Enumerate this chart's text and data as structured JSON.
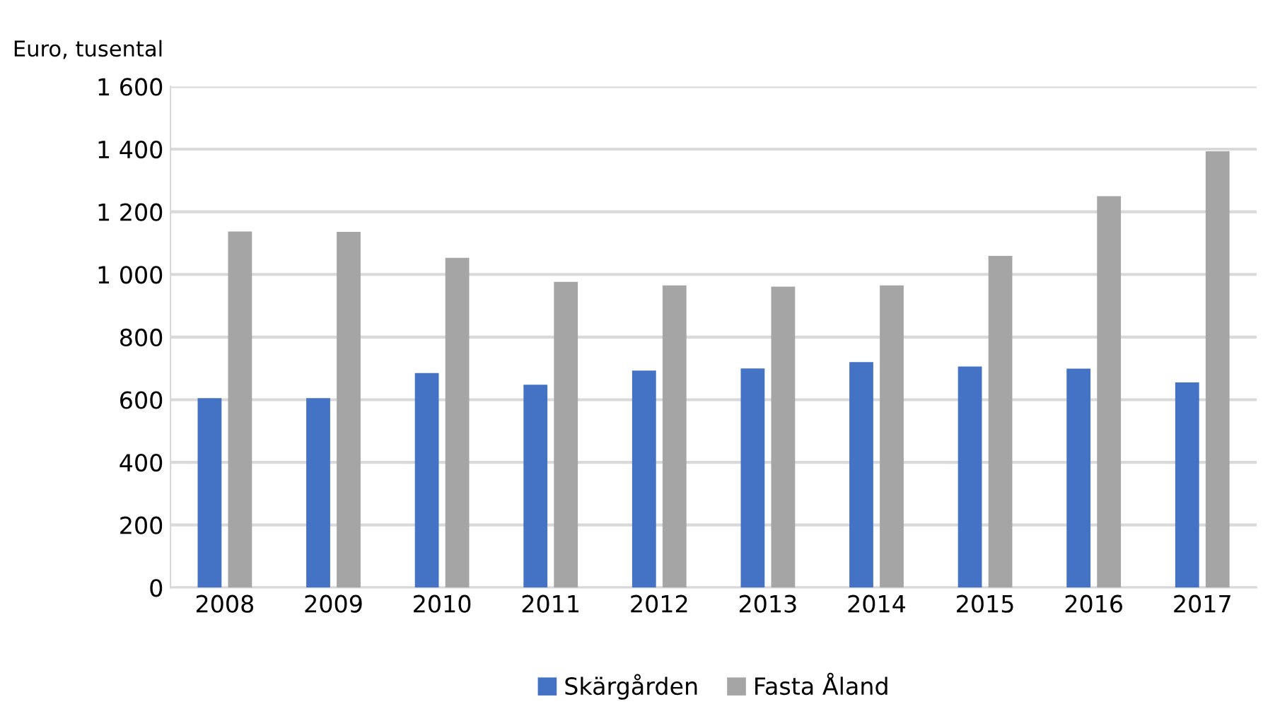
{
  "chart_data": {
    "type": "bar",
    "ylabel": "Euro, tusental",
    "categories": [
      "2008",
      "2009",
      "2010",
      "2011",
      "2012",
      "2013",
      "2014",
      "2015",
      "2016",
      "2017"
    ],
    "series": [
      {
        "name": "Skärgården",
        "color": "#4472c4",
        "values": [
          605,
          605,
          685,
          648,
          693,
          700,
          720,
          706,
          699,
          655
        ]
      },
      {
        "name": "Fasta Åland",
        "color": "#a5a5a5",
        "values": [
          1137,
          1136,
          1053,
          976,
          965,
          961,
          965,
          1059,
          1250,
          1393
        ]
      }
    ],
    "ylim": [
      0,
      1600
    ],
    "yticks": [
      0,
      {
        "value": 200,
        "label": "200"
      },
      {
        "value": 400,
        "label": "400"
      },
      {
        "value": 600,
        "label": "600"
      },
      {
        "value": 800,
        "label": "800"
      },
      {
        "value": 1000,
        "label": "1 000"
      },
      {
        "value": 1200,
        "label": "1 200"
      },
      {
        "value": 1400,
        "label": "1 400"
      },
      {
        "value": 1600,
        "label": "1 600"
      }
    ],
    "grid": "y",
    "legend": "bottom"
  }
}
